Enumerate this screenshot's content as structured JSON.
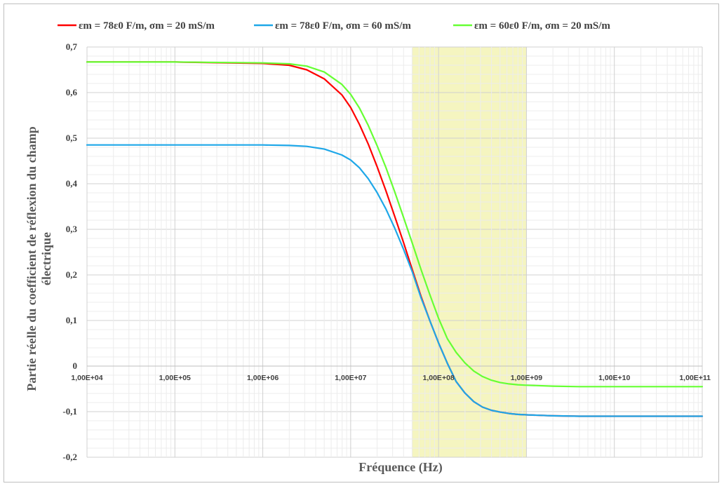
{
  "chart_data": {
    "type": "line",
    "x_scale": "log",
    "xlim": [
      "1,00E+04",
      "1,00E+11"
    ],
    "x_decades_exp": [
      4,
      5,
      6,
      7,
      8,
      9,
      10,
      11
    ],
    "ylim": [
      -0.2,
      0.7
    ],
    "xlabel": "Fréquence (Hz)",
    "ylabel_lines": [
      "Partie réelle du coefficient de réflexion du champ",
      "électrique"
    ],
    "x_tick_labels": [
      "1,00E+04",
      "1,00E+05",
      "1,00E+06",
      "1,00E+07",
      "1,00E+08",
      "1,00E+09",
      "1,00E+10",
      "1,00E+11"
    ],
    "y_ticks": [
      -0.2,
      -0.1,
      0,
      0.1,
      0.2,
      0.3,
      0.4,
      0.5,
      0.6,
      0.7
    ],
    "y_tick_labels": [
      "-0,2",
      "-0,1",
      "0",
      "0,1",
      "0,2",
      "0,3",
      "0,4",
      "0,5",
      "0,6",
      "0,7"
    ],
    "grid": true,
    "legend_position": "top",
    "highlight_band": {
      "x_range": [
        50000000.0,
        1000000000.0
      ],
      "color": "#f5f5c0"
    },
    "x_log10": [
      4.0,
      5.0,
      6.0,
      6.3,
      6.5,
      6.7,
      6.9,
      7.0,
      7.1,
      7.2,
      7.3,
      7.4,
      7.5,
      7.6,
      7.7,
      7.8,
      7.9,
      8.0,
      8.1,
      8.2,
      8.3,
      8.4,
      8.5,
      8.6,
      8.7,
      8.8,
      8.9,
      9.0,
      9.3,
      9.6,
      10.0,
      10.5,
      11.0
    ],
    "series": [
      {
        "name": "εm = 78ε0 F/m, σm = 20 mS/m",
        "color": "#ff0000",
        "y": [
          0.667,
          0.667,
          0.664,
          0.66,
          0.65,
          0.63,
          0.595,
          0.567,
          0.53,
          0.487,
          0.438,
          0.385,
          0.329,
          0.272,
          0.212,
          0.153,
          0.1,
          0.051,
          0.006,
          -0.034,
          -0.059,
          -0.078,
          -0.09,
          -0.097,
          -0.101,
          -0.104,
          -0.106,
          -0.107,
          -0.109,
          -0.11,
          -0.11,
          -0.11,
          -0.11
        ]
      },
      {
        "name": "εm = 78ε0 F/m, σm = 60 mS/m",
        "color": "#1ea7e8",
        "y": [
          0.485,
          0.485,
          0.485,
          0.484,
          0.482,
          0.476,
          0.463,
          0.452,
          0.435,
          0.411,
          0.381,
          0.345,
          0.303,
          0.257,
          0.207,
          0.15,
          0.1,
          0.051,
          0.006,
          -0.034,
          -0.059,
          -0.078,
          -0.09,
          -0.097,
          -0.101,
          -0.104,
          -0.106,
          -0.107,
          -0.109,
          -0.11,
          -0.11,
          -0.11,
          -0.11
        ]
      },
      {
        "name": "εm = 60ε0 F/m, σm = 20 mS/m",
        "color": "#66ff33",
        "y": [
          0.667,
          0.667,
          0.665,
          0.663,
          0.658,
          0.645,
          0.618,
          0.596,
          0.566,
          0.528,
          0.484,
          0.436,
          0.383,
          0.327,
          0.27,
          0.212,
          0.157,
          0.105,
          0.06,
          0.03,
          0.007,
          -0.011,
          -0.023,
          -0.031,
          -0.036,
          -0.039,
          -0.041,
          -0.042,
          -0.044,
          -0.045,
          -0.045,
          -0.045,
          -0.045
        ]
      }
    ]
  }
}
